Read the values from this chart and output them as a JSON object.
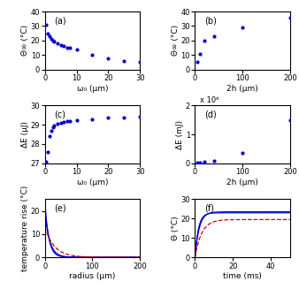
{
  "panel_a": {
    "label": "(a)",
    "x": [
      0.5,
      1,
      1.5,
      2,
      2.5,
      3,
      4,
      5,
      6,
      7,
      8,
      10,
      15,
      20,
      25,
      30
    ],
    "y": [
      31,
      25,
      23,
      21,
      20,
      19,
      18,
      17,
      16,
      15,
      15,
      14,
      10,
      8,
      6,
      5
    ],
    "xlabel": "ω₀ (μm)",
    "ylabel": "Θ∞ (°C)",
    "xlim": [
      0,
      30
    ],
    "ylim": [
      0,
      40
    ],
    "xticks": [
      0,
      10,
      20,
      30
    ],
    "yticks": [
      0,
      10,
      20,
      30,
      40
    ]
  },
  "panel_b": {
    "label": "(b)",
    "x": [
      5,
      10,
      20,
      40,
      100,
      200
    ],
    "y": [
      5,
      11,
      20,
      23,
      29,
      36
    ],
    "xlabel": "2h (μm)",
    "ylabel": "Θ∞ (°C)",
    "xlim": [
      0,
      200
    ],
    "ylim": [
      0,
      40
    ],
    "xticks": [
      0,
      100,
      200
    ],
    "yticks": [
      0,
      10,
      20,
      30,
      40
    ]
  },
  "panel_c": {
    "label": "(c)",
    "x": [
      0.5,
      1,
      1.5,
      2,
      2.5,
      3,
      4,
      5,
      6,
      7,
      8,
      10,
      15,
      20,
      25,
      30
    ],
    "y": [
      27.1,
      27.6,
      28.4,
      28.7,
      28.85,
      28.95,
      29.05,
      29.1,
      29.15,
      29.18,
      29.2,
      29.22,
      29.3,
      29.35,
      29.38,
      29.42
    ],
    "xlabel": "ω₀ (μm)",
    "ylabel": "ΔE (μJ)",
    "xlim": [
      0,
      30
    ],
    "ylim": [
      27,
      30
    ],
    "xticks": [
      0,
      10,
      20,
      30
    ],
    "yticks": [
      27,
      28,
      29,
      30
    ]
  },
  "panel_d": {
    "label": "(d)",
    "x": [
      5,
      10,
      20,
      40,
      100,
      200
    ],
    "y": [
      0.02,
      0.04,
      0.06,
      0.08,
      0.35,
      1.5
    ],
    "xlabel": "2h (μm)",
    "ylabel": "ΔE (mJ)",
    "subtitle": "x 10⁶",
    "xlim": [
      0,
      200
    ],
    "ylim": [
      0,
      2
    ],
    "xticks": [
      0,
      100,
      200
    ],
    "yticks": [
      0,
      1,
      2
    ]
  },
  "panel_e": {
    "label": "(e)",
    "xlabel": "radius (μm)",
    "ylabel": "temperature rise (°C)",
    "xlim": [
      0,
      200
    ],
    "ylim": [
      0,
      25
    ],
    "xticks": [
      0,
      100,
      200
    ],
    "yticks": [
      0,
      10,
      20
    ],
    "blue1_amp": 24,
    "blue1_tau": 8,
    "blue2_amp": 20,
    "blue2_tau": 10,
    "red_amp": 13,
    "red_tau": 20
  },
  "panel_f": {
    "label": "(f)",
    "xlabel": "time (ms)",
    "ylabel": "Θ (°C)",
    "xlim": [
      0,
      50
    ],
    "ylim": [
      0,
      30
    ],
    "xticks": [
      0,
      20,
      40
    ],
    "yticks": [
      0,
      10,
      20,
      30
    ],
    "blue1_amp": 23,
    "blue1_tau": 1.8,
    "blue2_amp": 23.5,
    "blue2_tau": 2.2,
    "red_amp": 19.5,
    "red_tau": 3.5
  },
  "dot_color": "#0000cc",
  "line_blue": "#0000cc",
  "line_red": "#cc0000"
}
